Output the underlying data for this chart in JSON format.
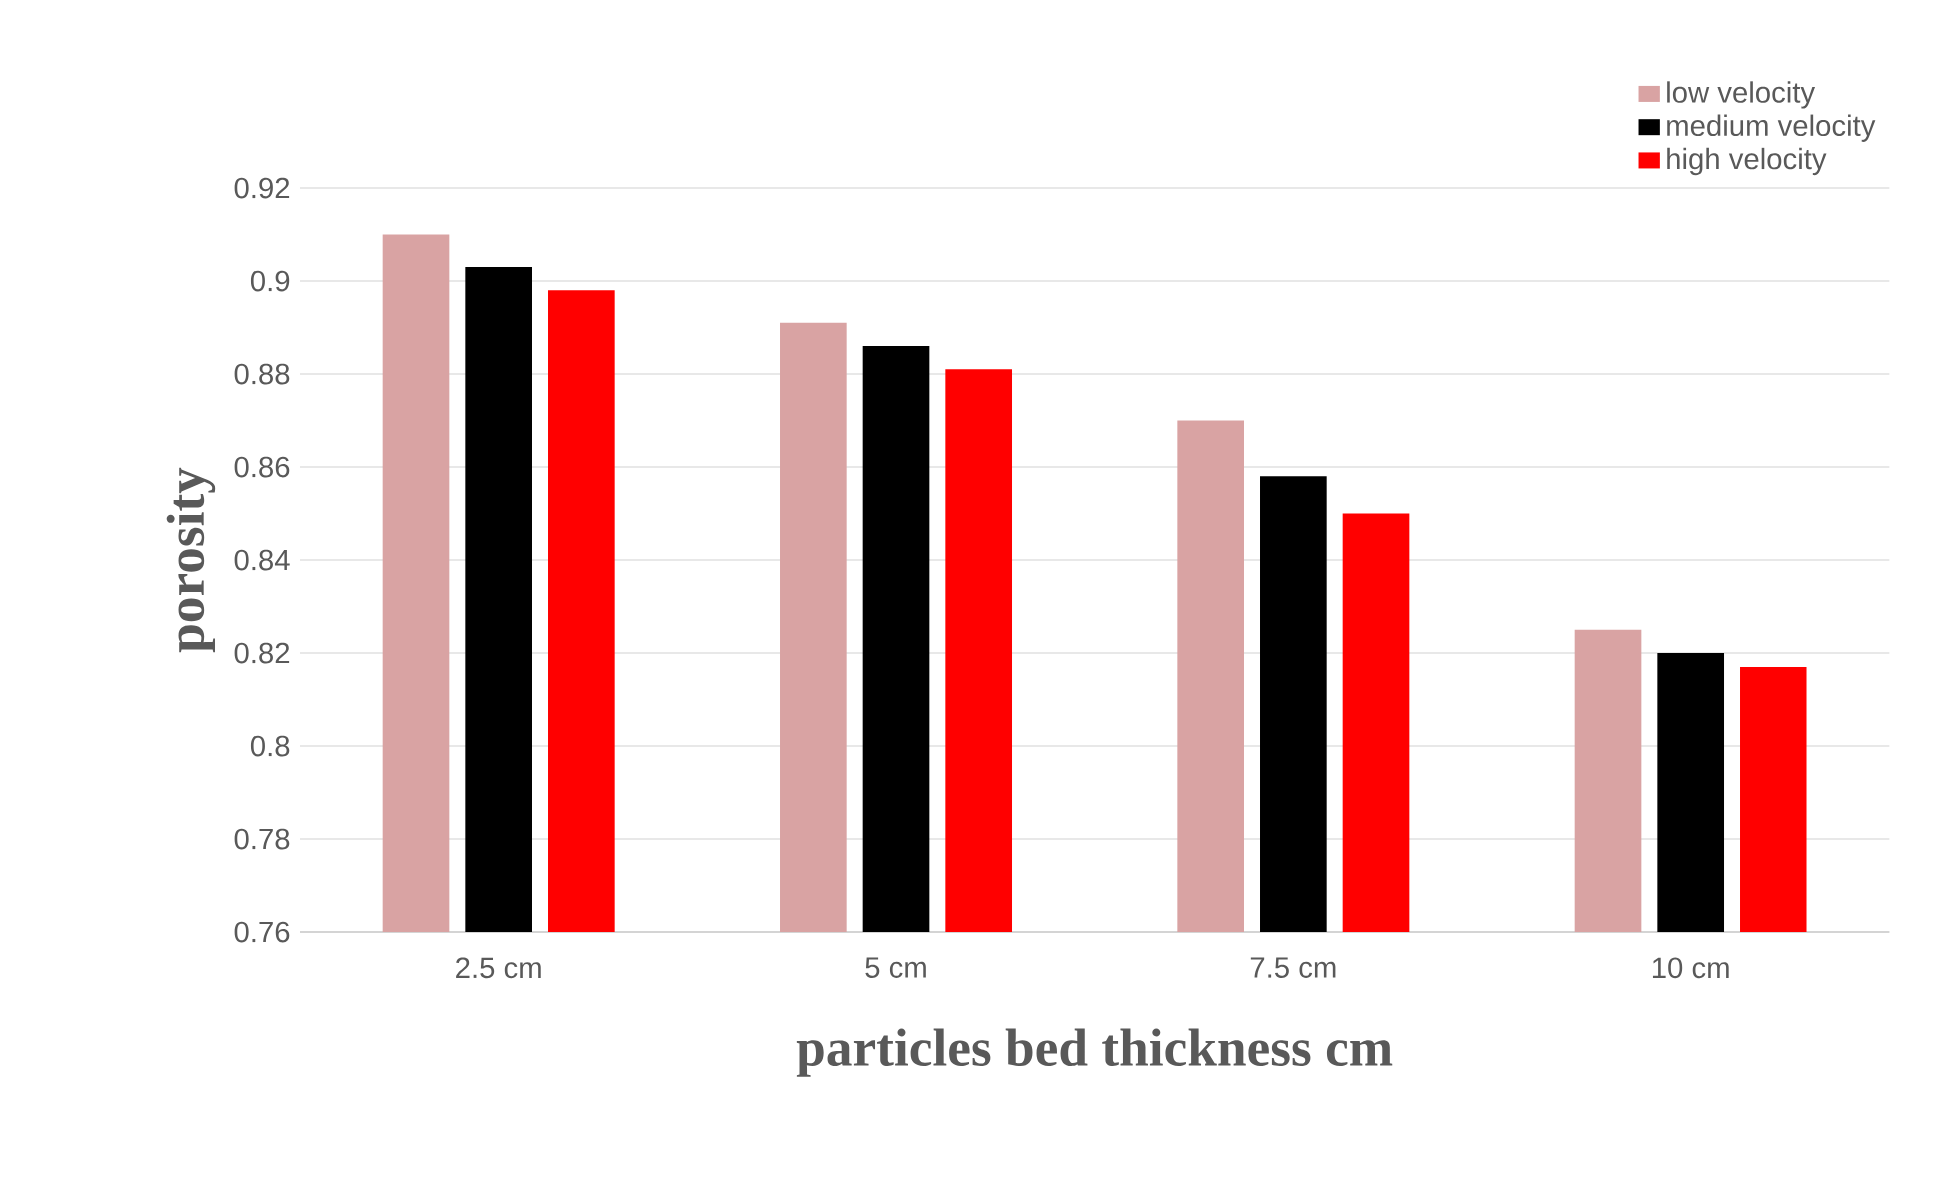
{
  "chart_data": {
    "type": "bar",
    "xlabel": "particles bed thickness cm",
    "ylabel": "porosity",
    "categories": [
      "2.5 cm",
      "5 cm",
      "7.5 cm",
      "10 cm"
    ],
    "series": [
      {
        "name": "low velocity",
        "color": "#d9a3a3",
        "values": [
          0.91,
          0.891,
          0.87,
          0.825
        ]
      },
      {
        "name": "medium velocity",
        "color": "#000000",
        "values": [
          0.903,
          0.886,
          0.858,
          0.82
        ]
      },
      {
        "name": "high velocity",
        "color": "#ff0000",
        "values": [
          0.898,
          0.881,
          0.85,
          0.817
        ]
      }
    ],
    "ylim": [
      0.76,
      0.92
    ],
    "yticks": [
      0.76,
      0.78,
      0.8,
      0.82,
      0.84,
      0.86,
      0.88,
      0.9,
      0.92
    ],
    "grid": "y",
    "legend": "top right"
  }
}
